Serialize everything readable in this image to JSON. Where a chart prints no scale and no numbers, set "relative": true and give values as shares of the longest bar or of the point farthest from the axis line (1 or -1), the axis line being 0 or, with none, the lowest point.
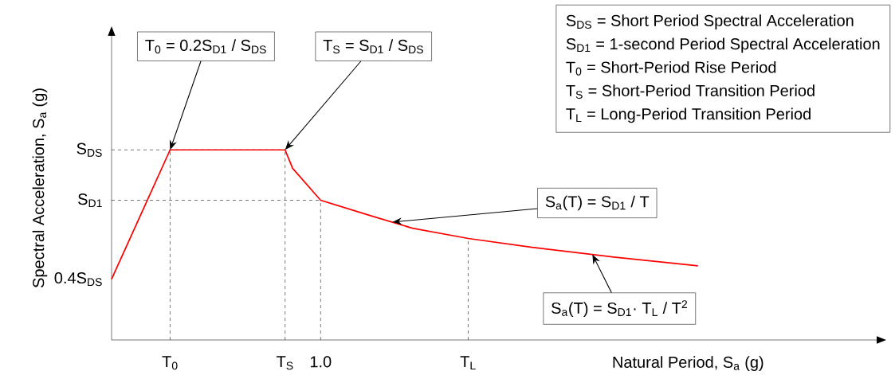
{
  "chart_data": {
    "type": "line",
    "relative": true,
    "xlabel": "Natural Period, S$_{a}$ (g)",
    "ylabel": "Spectral Acceleration, S$_{a}$ (g)",
    "x": [
      0,
      0.28,
      0.83,
      0.866,
      1.0,
      1.248,
      1.439,
      1.706,
      2.011,
      2.393,
      2.805
    ],
    "xlim": [
      0,
      3.66
    ],
    "xticks": [
      {
        "value": 0.28,
        "label": "T$_{0}$"
      },
      {
        "value": 0.83,
        "label": "T$_{S}$"
      },
      {
        "value": 1.0,
        "label": "1.0"
      },
      {
        "value": 1.706,
        "label": "T$_{L}$"
      }
    ],
    "series": [
      {
        "color": "#ff0000",
        "values": [
          0.32,
          1,
          1,
          0.903,
          0.735,
          0.651,
          0.588,
          0.534,
          0.487,
          0.437,
          0.39
        ]
      }
    ],
    "ref_lines": [
      {
        "axis": "y",
        "value": 1,
        "label": "S$_{DS}$",
        "color": "#000000",
        "line_style": "dashed"
      },
      {
        "axis": "y",
        "value": 0.735,
        "label": "S$_{D1}$",
        "color": "#000000",
        "line_style": "dashed"
      },
      {
        "axis": "x",
        "value": 0.28,
        "color": "#000000",
        "line_style": "dashed"
      },
      {
        "axis": "x",
        "value": 0.83,
        "color": "#000000",
        "line_style": "dashed"
      },
      {
        "axis": "x",
        "value": 1.0,
        "color": "#000000",
        "line_style": "dashed"
      },
      {
        "axis": "x",
        "value": 1.706,
        "color": "#000000",
        "line_style": "dashed"
      }
    ],
    "annotations": [
      {
        "text": "T$_{0}$ = 0.2S$_{D1}$ / S$_{DS}$",
        "x": 0.28,
        "y": 1
      },
      {
        "text": "T$_{S}$ = S$_{D1}$ / S$_{DS}$",
        "x": 0.83,
        "y": 1
      },
      {
        "text": "S$_{a}$(T) = S$_{D1}$ / T",
        "x": 1.343,
        "y": 0.62
      },
      {
        "text": "S$_{a}$(T) = S$_{D1}$· T$_{L}$ / T$^{2}$",
        "x": 2.3,
        "y": 0.45
      },
      {
        "text": "0.4S$_{DS}$",
        "x": 0,
        "y": 0.32
      },
      "S$_{DS}$ = Short Period Spectral Acceleration",
      "S$_{D1}$ = 1-second Period Spectral Acceleration",
      "T$_{0}$ = Short-Period Rise Period",
      "T$_{S}$ = Short-Period Transition Period",
      "T$_{L}$ = Long-Period Transition Period"
    ]
  }
}
